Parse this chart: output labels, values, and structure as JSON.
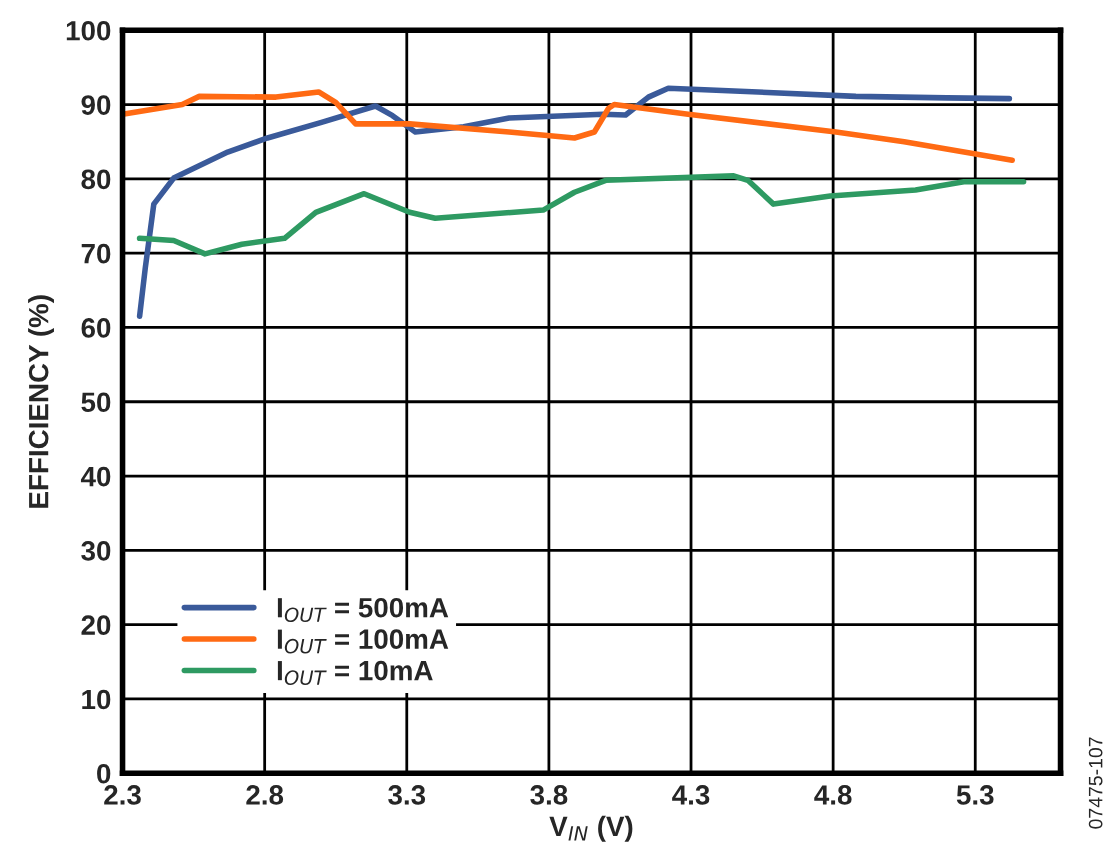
{
  "chart_data": {
    "type": "line",
    "xlabel": "V$_{IN}$ (V)",
    "ylabel": "EFFICIENCY (%)",
    "xlim": [
      2.3,
      5.6
    ],
    "xticks": [
      2.3,
      2.8,
      3.3,
      3.8,
      4.3,
      4.8,
      5.3
    ],
    "ylim": [
      0,
      100
    ],
    "yticks": [
      0,
      10,
      20,
      30,
      40,
      50,
      60,
      70,
      80,
      90,
      100
    ],
    "grid": true,
    "legend": "bottom left",
    "marker": "none",
    "line_style": "solid",
    "annotations": [
      "07475-107"
    ],
    "series": [
      {
        "name": "I$_{OUT}$ = 500mA",
        "color": "#3a5a9a",
        "x": [
          2.36,
          2.38,
          2.41,
          2.48,
          2.67,
          2.81,
          3.0,
          3.19,
          3.25,
          3.33,
          3.5,
          3.66,
          3.99,
          4.07,
          4.15,
          4.22,
          4.41,
          4.88,
          5.2,
          5.42
        ],
        "values": [
          61.5,
          68,
          76.6,
          80.1,
          83.6,
          85.5,
          87.6,
          89.8,
          88.5,
          86.3,
          87,
          88.2,
          88.7,
          88.6,
          91,
          92.2,
          91.9,
          91.1,
          90.9,
          90.8
        ]
      },
      {
        "name": "I$_{OUT}$ = 100mA",
        "color": "#ff6a13",
        "x": [
          2.3,
          2.51,
          2.57,
          2.84,
          2.99,
          3.05,
          3.12,
          3.31,
          3.66,
          3.89,
          3.96,
          4.01,
          4.03,
          4.29,
          4.81,
          5.05,
          5.43
        ],
        "values": [
          88.7,
          90.0,
          91.1,
          91.0,
          91.7,
          90.3,
          87.4,
          87.4,
          86.3,
          85.5,
          86.3,
          89.5,
          90.0,
          88.7,
          86.3,
          85.0,
          82.5
        ]
      },
      {
        "name": "I$_{OUT}$ = 10mA",
        "color": "#2e9a62",
        "x": [
          2.36,
          2.48,
          2.59,
          2.72,
          2.87,
          2.98,
          3.15,
          3.31,
          3.4,
          3.78,
          3.89,
          4.0,
          4.45,
          4.5,
          4.59,
          4.79,
          5.09,
          5.26,
          5.47
        ],
        "values": [
          72,
          71.7,
          69.9,
          71.2,
          72,
          75.5,
          78,
          75.5,
          74.7,
          75.8,
          78.2,
          79.8,
          80.4,
          79.8,
          76.6,
          77.7,
          78.5,
          79.6,
          79.6
        ]
      }
    ]
  }
}
